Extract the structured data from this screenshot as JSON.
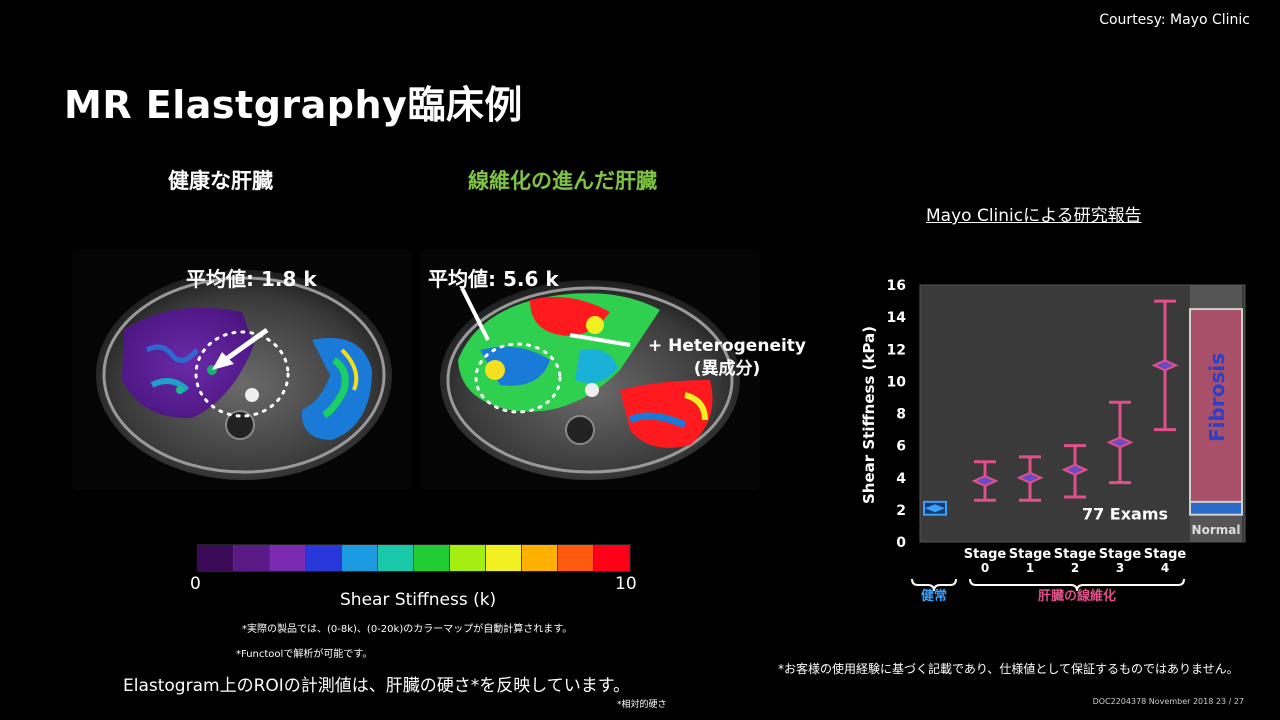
{
  "courtesy": "Courtesy: Mayo Clinic",
  "title": "MR Elastgraphy臨床例",
  "left_panel": {
    "label_healthy": "健康な肝臓",
    "label_fibrotic": "線維化の進んだ肝臓",
    "roi_healthy": "平均値: 1.8 k",
    "roi_fibrotic": "平均値: 5.6 k",
    "hetero_line1": "+ Heterogeneity",
    "hetero_line2": "(異成分)"
  },
  "colorbar": {
    "min_label": "0",
    "max_label": "10",
    "title": "Shear Stiffness (k)",
    "colors": [
      "#3a0a56",
      "#5a1a86",
      "#7a2ab0",
      "#2838d8",
      "#1c9be0",
      "#19c8a8",
      "#22cc33",
      "#a6ee12",
      "#f2f020",
      "#ffb000",
      "#ff5a10",
      "#ff0018"
    ]
  },
  "notes": {
    "note1": "*実際の製品では、(0-8k)、(0-20k)のカラーマップが自動計算されます。",
    "note2": "*Functoolで解析が可能です。",
    "bottom": "Elastogram上のROIの計測値は、肝臓の硬さ*を反映しています。",
    "bottom_small": "*相対的硬さ"
  },
  "mayo_title": "Mayo Clinicによる研究報告",
  "chart_data": {
    "type": "scatter",
    "ylabel": "Shear Stiffness (kPa)",
    "ylim": [
      0,
      16
    ],
    "yticks": [
      "0",
      "2",
      "4",
      "6",
      "8",
      "10",
      "12",
      "14",
      "16"
    ],
    "categories": [
      {
        "line1": "",
        "line2": ""
      },
      {
        "line1": "Stage",
        "line2": "0"
      },
      {
        "line1": "Stage",
        "line2": "1"
      },
      {
        "line1": "Stage",
        "line2": "2"
      },
      {
        "line1": "Stage",
        "line2": "3"
      },
      {
        "line1": "Stage",
        "line2": "4"
      }
    ],
    "points": [
      {
        "mean": 2.1,
        "low": 1.7,
        "high": 2.5,
        "color": "#3aa0ff"
      },
      {
        "mean": 3.8,
        "low": 2.6,
        "high": 5.0,
        "color": "#e0508a"
      },
      {
        "mean": 4.0,
        "low": 2.6,
        "high": 5.3,
        "color": "#e0508a"
      },
      {
        "mean": 4.5,
        "low": 2.8,
        "high": 6.0,
        "color": "#e0508a"
      },
      {
        "mean": 6.2,
        "low": 3.7,
        "high": 8.7,
        "color": "#e0508a"
      },
      {
        "mean": 11.0,
        "low": 7.0,
        "high": 15.0,
        "color": "#e0508a"
      }
    ],
    "annotation": "77 Exams",
    "fibrosis_label": "Fibrosis",
    "normal_label": "Normal",
    "group_normal": "健常",
    "group_fibrosis": "肝臓の線維化",
    "fibrosis_band": {
      "low": 2.2,
      "high": 14.5
    },
    "normal_band": {
      "low": 1.7,
      "high": 2.5
    },
    "colors": {
      "plot_bg": "#3a3a3a",
      "pink": "#e0508a",
      "blue": "#3aa0ff",
      "fibrosis_fill": "#a8506a"
    }
  },
  "disclaimer": "*お客様の使用経験に基づく記載であり、仕様値として保証するものではありません。",
  "docid": "DOC2204378 November 2018   23 / 27"
}
